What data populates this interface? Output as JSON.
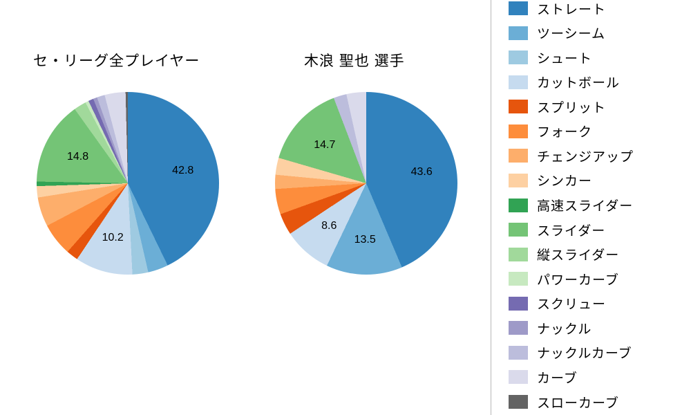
{
  "titles": {
    "left": "セ・リーグ全プレイヤー",
    "right": "木浪 聖也 選手"
  },
  "legend": {
    "items": [
      {
        "label": "ストレート",
        "color": "#3182bd"
      },
      {
        "label": "ツーシーム",
        "color": "#6baed6"
      },
      {
        "label": "シュート",
        "color": "#9ecae1"
      },
      {
        "label": "カットボール",
        "color": "#c6dbef"
      },
      {
        "label": "スプリット",
        "color": "#e6550d"
      },
      {
        "label": "フォーク",
        "color": "#fd8d3c"
      },
      {
        "label": "チェンジアップ",
        "color": "#fdae6b"
      },
      {
        "label": "シンカー",
        "color": "#fdd0a2"
      },
      {
        "label": "高速スライダー",
        "color": "#31a354"
      },
      {
        "label": "スライダー",
        "color": "#74c476"
      },
      {
        "label": "縦スライダー",
        "color": "#a1d99b"
      },
      {
        "label": "パワーカーブ",
        "color": "#c7e9c0"
      },
      {
        "label": "スクリュー",
        "color": "#756bb1"
      },
      {
        "label": "ナックル",
        "color": "#9e9ac8"
      },
      {
        "label": "ナックルカーブ",
        "color": "#bcbddc"
      },
      {
        "label": "カーブ",
        "color": "#dadaeb"
      },
      {
        "label": "スローカーブ",
        "color": "#636363"
      }
    ]
  },
  "chart_data": [
    {
      "type": "pie",
      "title": "セ・リーグ全プレイヤー",
      "start_angle_deg": 0,
      "direction": "clockwise",
      "labeled_values": {
        "ストレート": 42.8,
        "カットボール": 10.2,
        "スライダー": 14.8
      },
      "slices": [
        {
          "label": "ストレート",
          "value": 42.8,
          "color": "#3182bd",
          "show_value": true
        },
        {
          "label": "ツーシーム",
          "value": 3.6,
          "color": "#6baed6",
          "show_value": false
        },
        {
          "label": "シュート",
          "value": 2.8,
          "color": "#9ecae1",
          "show_value": false
        },
        {
          "label": "カットボール",
          "value": 10.2,
          "color": "#c6dbef",
          "show_value": true
        },
        {
          "label": "スプリット",
          "value": 2.1,
          "color": "#e6550d",
          "show_value": false
        },
        {
          "label": "フォーク",
          "value": 5.8,
          "color": "#fd8d3c",
          "show_value": false
        },
        {
          "label": "チェンジアップ",
          "value": 5.2,
          "color": "#fdae6b",
          "show_value": false
        },
        {
          "label": "シンカー",
          "value": 2.0,
          "color": "#fdd0a2",
          "show_value": false
        },
        {
          "label": "高速スライダー",
          "value": 0.8,
          "color": "#31a354",
          "show_value": false
        },
        {
          "label": "スライダー",
          "value": 14.8,
          "color": "#74c476",
          "show_value": true
        },
        {
          "label": "縦スライダー",
          "value": 2.2,
          "color": "#a1d99b",
          "show_value": false
        },
        {
          "label": "パワーカーブ",
          "value": 0.6,
          "color": "#c7e9c0",
          "show_value": false
        },
        {
          "label": "スクリュー",
          "value": 0.9,
          "color": "#756bb1",
          "show_value": false
        },
        {
          "label": "ナックル",
          "value": 0.7,
          "color": "#9e9ac8",
          "show_value": false
        },
        {
          "label": "ナックルカーブ",
          "value": 1.4,
          "color": "#bcbddc",
          "show_value": false
        },
        {
          "label": "カーブ",
          "value": 3.7,
          "color": "#dadaeb",
          "show_value": false
        },
        {
          "label": "スローカーブ",
          "value": 0.4,
          "color": "#636363",
          "show_value": false
        }
      ]
    },
    {
      "type": "pie",
      "title": "木浪 聖也 選手",
      "start_angle_deg": 0,
      "direction": "clockwise",
      "labeled_values": {
        "ストレート": 43.6,
        "ツーシーム": 13.5,
        "カットボール": 8.6,
        "スライダー": 14.7
      },
      "slices": [
        {
          "label": "ストレート",
          "value": 43.6,
          "color": "#3182bd",
          "show_value": true
        },
        {
          "label": "ツーシーム",
          "value": 13.5,
          "color": "#6baed6",
          "show_value": true
        },
        {
          "label": "カットボール",
          "value": 8.6,
          "color": "#c6dbef",
          "show_value": true
        },
        {
          "label": "スプリット",
          "value": 3.8,
          "color": "#e6550d",
          "show_value": false
        },
        {
          "label": "フォーク",
          "value": 4.5,
          "color": "#fd8d3c",
          "show_value": false
        },
        {
          "label": "チェンジアップ",
          "value": 2.5,
          "color": "#fdae6b",
          "show_value": false
        },
        {
          "label": "シンカー",
          "value": 3.0,
          "color": "#fdd0a2",
          "show_value": false
        },
        {
          "label": "スライダー",
          "value": 14.7,
          "color": "#74c476",
          "show_value": true
        },
        {
          "label": "ナックルカーブ",
          "value": 2.3,
          "color": "#bcbddc",
          "show_value": false
        },
        {
          "label": "カーブ",
          "value": 3.5,
          "color": "#dadaeb",
          "show_value": false
        }
      ]
    }
  ]
}
